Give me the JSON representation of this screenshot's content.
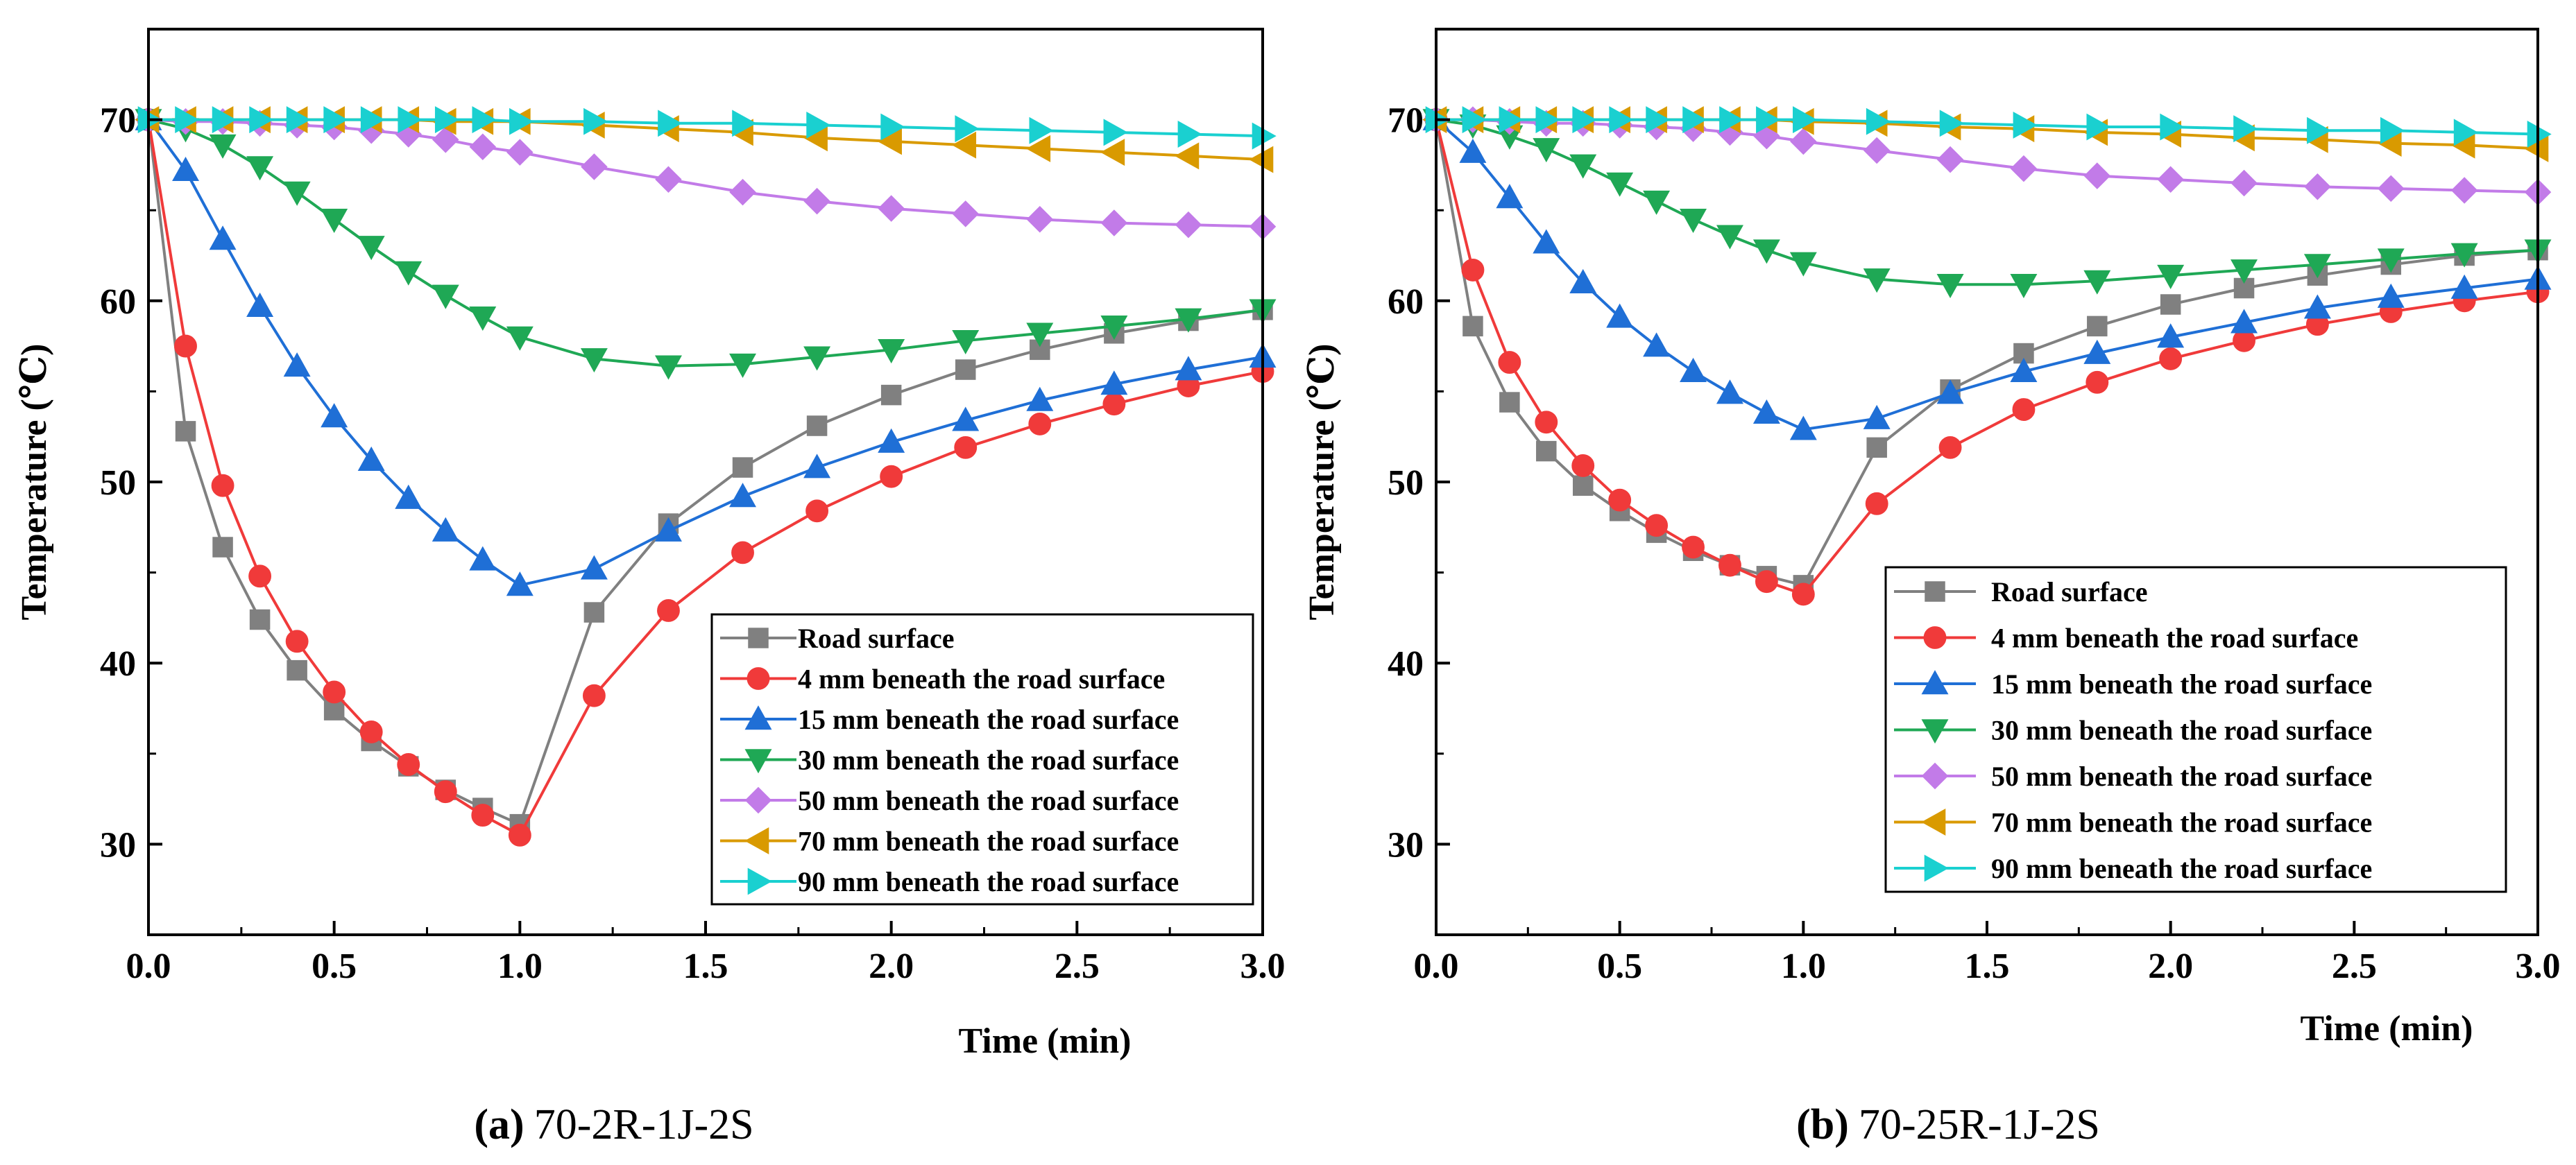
{
  "chart_data": [
    {
      "type": "line",
      "caption_letter": "(a)",
      "caption_text": "70-2R-1J-2S",
      "xlabel": "Time (min)",
      "ylabel": "Temperature (℃)",
      "xlim": [
        0,
        3
      ],
      "ylim": [
        25,
        75
      ],
      "xticks": [
        0,
        0.5,
        1.0,
        1.5,
        2.0,
        2.5,
        3.0
      ],
      "xtick_labels": [
        "0.0",
        "0.5",
        "1.0",
        "1.5",
        "2.0",
        "2.5",
        "3.0"
      ],
      "yticks": [
        30,
        40,
        50,
        60,
        70
      ],
      "ytick_labels": [
        "30",
        "40",
        "50",
        "60",
        "70"
      ],
      "legend_position": "bottom-right",
      "x": [
        0,
        0.1,
        0.2,
        0.3,
        0.4,
        0.5,
        0.6,
        0.7,
        0.8,
        0.9,
        1.0,
        1.2,
        1.4,
        1.6,
        1.8,
        2.0,
        2.2,
        2.4,
        2.6,
        2.8,
        3.0
      ],
      "series": [
        {
          "name": "Road surface",
          "color": "#808080",
          "marker": "square",
          "values": [
            70,
            52.8,
            46.4,
            42.4,
            39.6,
            37.4,
            35.7,
            34.3,
            33.0,
            32.0,
            31.1,
            42.8,
            47.7,
            50.8,
            53.1,
            54.8,
            56.2,
            57.3,
            58.2,
            58.9,
            59.5
          ]
        },
        {
          "name": "4 mm beneath the road surface",
          "color": "#f03a3a",
          "marker": "circle",
          "values": [
            70,
            57.5,
            49.8,
            44.8,
            41.2,
            38.4,
            36.2,
            34.4,
            32.9,
            31.6,
            30.5,
            38.2,
            42.9,
            46.1,
            48.4,
            50.3,
            51.9,
            53.2,
            54.3,
            55.3,
            56.1
          ]
        },
        {
          "name": "15 mm beneath the road surface",
          "color": "#1f6fd6",
          "marker": "triangle-up",
          "values": [
            70,
            67.2,
            63.4,
            59.7,
            56.4,
            53.6,
            51.2,
            49.1,
            47.3,
            45.7,
            44.3,
            45.2,
            47.3,
            49.2,
            50.8,
            52.2,
            53.4,
            54.5,
            55.4,
            56.2,
            56.9
          ]
        },
        {
          "name": "30 mm beneath the road surface",
          "color": "#1fa855",
          "marker": "triangle-down",
          "values": [
            70,
            69.5,
            68.6,
            67.4,
            66.0,
            64.5,
            63.0,
            61.6,
            60.3,
            59.1,
            58.0,
            56.8,
            56.4,
            56.5,
            56.9,
            57.3,
            57.8,
            58.2,
            58.6,
            59.0,
            59.5
          ]
        },
        {
          "name": "50 mm beneath the road surface",
          "color": "#c27be8",
          "marker": "diamond",
          "values": [
            70,
            69.9,
            69.9,
            69.8,
            69.7,
            69.6,
            69.4,
            69.2,
            68.9,
            68.5,
            68.2,
            67.4,
            66.7,
            66.0,
            65.5,
            65.1,
            64.8,
            64.5,
            64.3,
            64.2,
            64.1
          ]
        },
        {
          "name": "70 mm beneath the road surface",
          "color": "#d99a00",
          "marker": "triangle-left",
          "values": [
            70,
            70,
            70,
            70,
            70,
            70,
            70,
            70,
            69.9,
            69.9,
            69.9,
            69.7,
            69.5,
            69.3,
            69.0,
            68.8,
            68.6,
            68.4,
            68.2,
            68.0,
            67.8
          ]
        },
        {
          "name": "90 mm beneath the road surface",
          "color": "#1ad0d0",
          "marker": "triangle-right",
          "values": [
            70,
            70,
            70,
            70,
            70,
            70,
            70,
            70,
            70,
            70,
            69.9,
            69.9,
            69.8,
            69.8,
            69.7,
            69.6,
            69.5,
            69.4,
            69.3,
            69.2,
            69.1
          ]
        }
      ]
    },
    {
      "type": "line",
      "caption_letter": "(b)",
      "caption_text": "70-25R-1J-2S",
      "xlabel": "Time (min)",
      "ylabel": "Temperature (℃)",
      "xlim": [
        0,
        3
      ],
      "ylim": [
        25,
        75
      ],
      "xticks": [
        0,
        0.5,
        1.0,
        1.5,
        2.0,
        2.5,
        3.0
      ],
      "xtick_labels": [
        "0.0",
        "0.5",
        "1.0",
        "1.5",
        "2.0",
        "2.5",
        "3.0"
      ],
      "yticks": [
        30,
        40,
        50,
        60,
        70
      ],
      "ytick_labels": [
        "30",
        "40",
        "50",
        "60",
        "70"
      ],
      "legend_position": "bottom-right",
      "x": [
        0,
        0.1,
        0.2,
        0.3,
        0.4,
        0.5,
        0.6,
        0.7,
        0.8,
        0.9,
        1.0,
        1.2,
        1.4,
        1.6,
        1.8,
        2.0,
        2.2,
        2.4,
        2.6,
        2.8,
        3.0
      ],
      "series": [
        {
          "name": "Road surface",
          "color": "#808080",
          "marker": "square",
          "values": [
            70,
            58.6,
            54.4,
            51.7,
            49.8,
            48.4,
            47.2,
            46.2,
            45.4,
            44.8,
            44.3,
            51.9,
            55.1,
            57.1,
            58.6,
            59.8,
            60.7,
            61.4,
            62.0,
            62.5,
            62.8
          ]
        },
        {
          "name": "4 mm beneath the road surface",
          "color": "#f03a3a",
          "marker": "circle",
          "values": [
            70,
            61.7,
            56.6,
            53.3,
            50.9,
            49.0,
            47.6,
            46.4,
            45.4,
            44.5,
            43.8,
            48.8,
            51.9,
            54.0,
            55.5,
            56.8,
            57.8,
            58.7,
            59.4,
            60.0,
            60.5
          ]
        },
        {
          "name": "15 mm beneath the road surface",
          "color": "#1f6fd6",
          "marker": "triangle-up",
          "values": [
            70,
            68.2,
            65.7,
            63.2,
            61.0,
            59.1,
            57.5,
            56.1,
            54.9,
            53.8,
            52.9,
            53.5,
            54.9,
            56.1,
            57.1,
            58.0,
            58.8,
            59.6,
            60.2,
            60.7,
            61.2
          ]
        },
        {
          "name": "30 mm beneath the road surface",
          "color": "#1fa855",
          "marker": "triangle-down",
          "values": [
            70,
            69.7,
            69.1,
            68.4,
            67.5,
            66.5,
            65.5,
            64.5,
            63.6,
            62.8,
            62.1,
            61.2,
            60.9,
            60.9,
            61.1,
            61.4,
            61.7,
            62.0,
            62.3,
            62.6,
            62.8
          ]
        },
        {
          "name": "50 mm beneath the road surface",
          "color": "#c27be8",
          "marker": "diamond",
          "values": [
            70,
            70,
            69.9,
            69.8,
            69.8,
            69.7,
            69.6,
            69.5,
            69.3,
            69.1,
            68.8,
            68.3,
            67.8,
            67.3,
            66.9,
            66.7,
            66.5,
            66.3,
            66.2,
            66.1,
            66.0
          ]
        },
        {
          "name": "70 mm beneath the road surface",
          "color": "#d99a00",
          "marker": "triangle-left",
          "values": [
            70,
            70,
            70,
            70,
            70,
            70,
            70,
            70,
            70,
            70,
            69.9,
            69.8,
            69.6,
            69.5,
            69.3,
            69.2,
            69.0,
            68.9,
            68.7,
            68.6,
            68.4
          ]
        },
        {
          "name": "90 mm beneath the road surface",
          "color": "#1ad0d0",
          "marker": "triangle-right",
          "values": [
            70,
            70,
            70,
            70,
            70,
            70,
            70,
            70,
            70,
            70,
            70,
            69.9,
            69.8,
            69.7,
            69.6,
            69.6,
            69.5,
            69.4,
            69.4,
            69.3,
            69.2
          ]
        }
      ]
    }
  ]
}
